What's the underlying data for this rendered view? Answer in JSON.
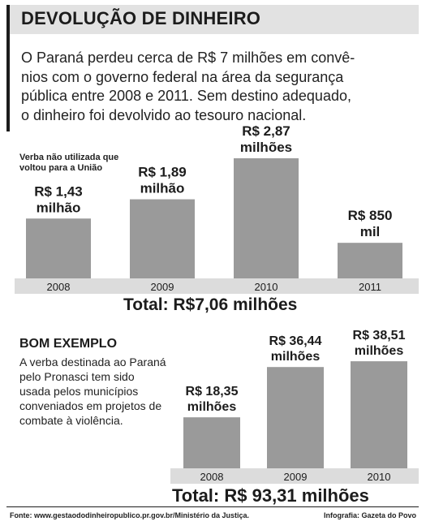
{
  "header": {
    "title": "DEVOLUÇÃO DE DINHEIRO"
  },
  "intro": {
    "lines": [
      "O Paraná perdeu cerca de R$ 7 milhões em convê-",
      "nios com o governo federal na área da segurança",
      "pública entre 2008 e 2011. Sem destino adequado,",
      "o dinheiro foi devolvido ao tesouro nacional."
    ]
  },
  "chart_data": [
    {
      "type": "bar",
      "title": "Verba não utilizada que voltou para a União",
      "title_lines": [
        "Verba não utilizada que",
        "voltou para a União"
      ],
      "categories": [
        "2008",
        "2009",
        "2010",
        "2011"
      ],
      "values": [
        1.43,
        1.89,
        2.87,
        0.85
      ],
      "value_unit": "milhões de R$",
      "labels": [
        [
          "R$ 1,43",
          "milhão"
        ],
        [
          "R$ 1,89",
          "milhão"
        ],
        [
          "R$ 2,87",
          "milhões"
        ],
        [
          "R$ 850",
          "mil"
        ]
      ],
      "total": "Total: R$7,06 milhões",
      "bar_color": "#9a9a9a",
      "axis_color": "#dcdcdc",
      "ylim": [
        0,
        3.2
      ]
    },
    {
      "type": "bar",
      "title": "BOM EXEMPLO",
      "description_lines": [
        "A verba destinada ao Paraná",
        "pelo Pronasci tem sido",
        "usada pelos municípios",
        "conveniados em projetos de",
        "combate à violência."
      ],
      "categories": [
        "2008",
        "2009",
        "2010"
      ],
      "values": [
        18.35,
        36.44,
        38.51
      ],
      "value_unit": "milhões de R$",
      "labels": [
        [
          "R$ 18,35",
          "milhões"
        ],
        [
          "R$ 36,44",
          "milhões"
        ],
        [
          "R$ 38,51",
          "milhões"
        ]
      ],
      "total": "Total: R$ 93,31 milhões",
      "bar_color": "#9a9a9a",
      "axis_color": "#dcdcdc",
      "ylim": [
        0,
        40
      ]
    }
  ],
  "footer": {
    "source": "Fonte: www.gestaododinheiropublico.pr.gov.br/Ministério da Justiça.",
    "credit": "Infografia: Gazeta do Povo"
  }
}
